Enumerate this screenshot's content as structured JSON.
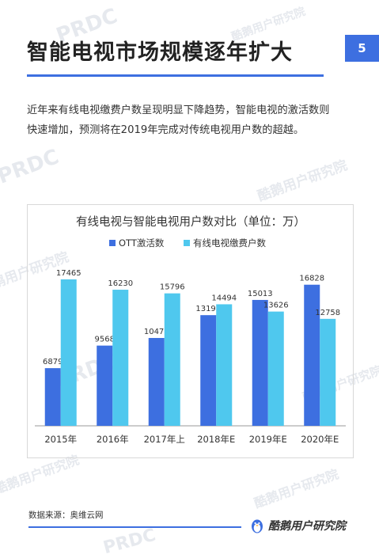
{
  "header": {
    "title": "智能电视市场规模逐年扩大",
    "page_number": "5"
  },
  "description": {
    "line1": "近年来有线电视缴费户数呈现明显下降趋势，智能电视的激活数则",
    "line2": "快速增加，预测将在2019年完成对传统电视用户数的超越。"
  },
  "watermark": {
    "brand": "酷鹅用户研究院",
    "prdc": "PRDC"
  },
  "footer": {
    "source": "数据来源：奥维云网",
    "logo_text": "酷鹅用户研究院",
    "logo_icon": "penguin-icon"
  },
  "colors": {
    "accent": "#3d6fe0",
    "ott": "#3d6fe0",
    "cable": "#4fc8ee"
  },
  "chart_data": {
    "type": "bar",
    "title": "有线电视与智能电视用户数对比（单位：万）",
    "categories": [
      "2015年",
      "2016年",
      "2017年上",
      "2018年E",
      "2019年E",
      "2020年E"
    ],
    "series": [
      {
        "name": "OTT激活数",
        "values": [
          6879,
          9568,
          10475,
          13198,
          15013,
          16828
        ]
      },
      {
        "name": "有线电视缴费户数",
        "values": [
          17465,
          16230,
          15796,
          14494,
          13626,
          12758
        ]
      }
    ],
    "ylim": [
      0,
      18500
    ],
    "legend": "top",
    "grid": false,
    "xlabel": "",
    "ylabel": ""
  }
}
